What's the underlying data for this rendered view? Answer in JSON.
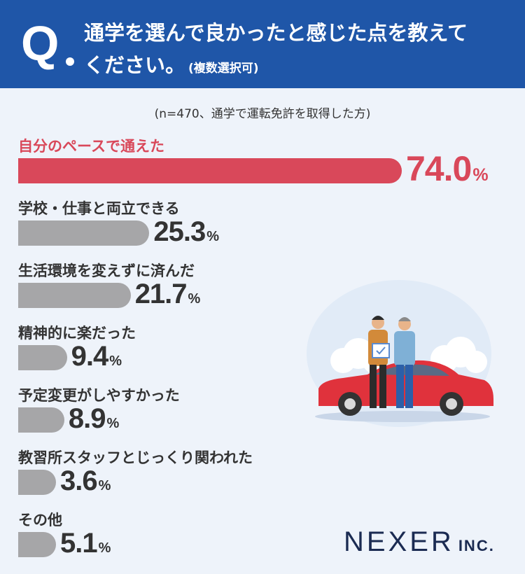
{
  "question": {
    "mark": "Q",
    "line1": "通学を選んで良かったと感じた点を教えて",
    "line2": "ください。",
    "note": "(複数選択可)"
  },
  "sample_note": "(n=470、通学で運転免許を取得した方)",
  "brand": {
    "name": "NEXER",
    "suffix": "INC."
  },
  "colors": {
    "header": "#1f56a8",
    "highlight": "#d9485a",
    "bar": "#a6a6a8",
    "background": "#eef3fa"
  },
  "chart_data": {
    "type": "bar",
    "orientation": "horizontal",
    "unit": "%",
    "categories": [
      "自分のペースで通えた",
      "学校・仕事と両立できる",
      "生活環境を変えずに済んだ",
      "精神的に楽だった",
      "予定変更がしやすかった",
      "教習所スタッフとじっくり関われた",
      "その他"
    ],
    "values": [
      74.0,
      25.3,
      21.7,
      9.4,
      8.9,
      3.6,
      5.1
    ],
    "labels": [
      "74.0",
      "25.3",
      "21.7",
      "9.4",
      "8.9",
      "3.6",
      "5.1"
    ],
    "highlight_index": 0,
    "xlim": [
      0,
      100
    ]
  }
}
